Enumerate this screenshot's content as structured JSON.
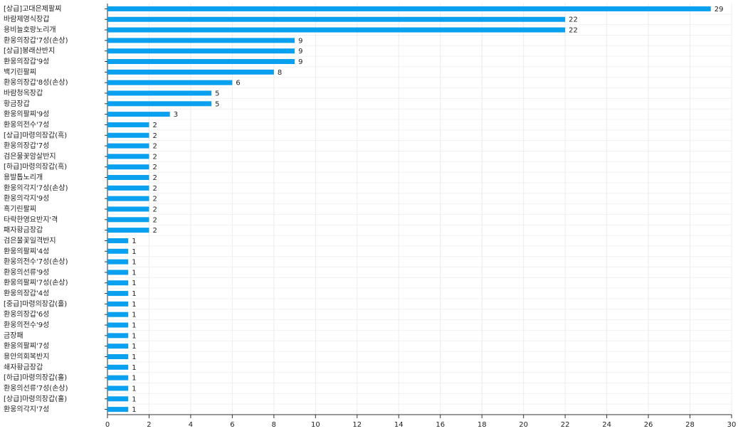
{
  "chart_data": {
    "type": "barh",
    "categories": [
      "[상급]고대은제팔찌",
      "바람제영식장갑",
      "용비늘호랑노리개",
      "환웅의장갑'7성(손상)",
      "[상급]봉래산반지",
      "환웅의장갑'9성",
      "백기린팔찌",
      "환웅의장갑'8성(손상)",
      "바람청옥장갑",
      "황금장갑",
      "환웅의팔찌'9성",
      "환웅의전수'7성",
      "[상급]마령의장갑(흑)",
      "환웅의장갑'7성",
      "검은물꽃암살반지",
      "[하급]마령의장갑(흑)",
      "용발톱노리개",
      "환웅의각지'7성(손상)",
      "환웅의각지'9성",
      "흑기린팔찌",
      "타락한영요반지'격",
      "패자황금장갑",
      "검은물꽃일격반지",
      "환웅의팔찌'4성",
      "환웅의전수'7성(손상)",
      "환웅의선류'9성",
      "환웅의팔찌'7성(손상)",
      "환웅의장갑'4성",
      "[중급]마령의장갑(홀)",
      "환웅의장갑'6성",
      "환웅의전수'9성",
      "금장패",
      "환웅의팔찌'7성",
      "용안의회복반지",
      "쇄자황금장갑",
      "[하급]마령의장갑(홀)",
      "환웅의선류'7성(손상)",
      "[상급]마령의장갑(홀)",
      "환웅의각지'7성"
    ],
    "values": [
      29,
      22,
      22,
      9,
      9,
      9,
      8,
      6,
      5,
      5,
      3,
      2,
      2,
      2,
      2,
      2,
      2,
      2,
      2,
      2,
      2,
      2,
      1,
      1,
      1,
      1,
      1,
      1,
      1,
      1,
      1,
      1,
      1,
      1,
      1,
      1,
      1,
      1,
      1
    ],
    "color": "#0aa0f0",
    "xlim": [
      0,
      30
    ],
    "xticks": [
      0,
      2,
      4,
      6,
      8,
      10,
      12,
      14,
      16,
      18,
      20,
      22,
      24,
      26,
      28,
      30
    ],
    "grid": true
  }
}
